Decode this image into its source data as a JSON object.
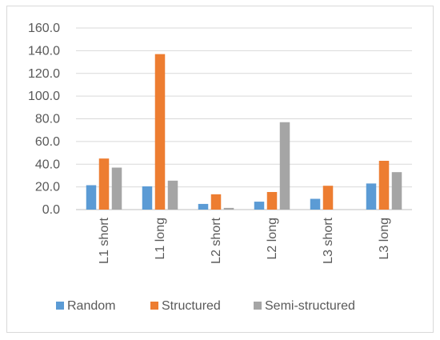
{
  "chart_data": {
    "type": "bar",
    "categories": [
      "L1 short",
      "L1 long",
      "L2 short",
      "L2 long",
      "L3 short",
      "L3 long"
    ],
    "series": [
      {
        "name": "Random",
        "color": "#5b9bd5",
        "values": [
          21.5,
          20.5,
          5.0,
          7.0,
          9.5,
          23.0
        ]
      },
      {
        "name": "Structured",
        "color": "#ed7d31",
        "values": [
          45.0,
          137.0,
          13.5,
          15.5,
          21.0,
          43.0
        ]
      },
      {
        "name": "Semi-structured",
        "color": "#a5a5a5",
        "values": [
          37.0,
          25.5,
          1.5,
          77.0,
          0,
          33.0
        ]
      }
    ],
    "ylim": [
      0,
      160
    ],
    "yticks": [
      "0.0",
      "20.0",
      "40.0",
      "60.0",
      "80.0",
      "100.0",
      "120.0",
      "140.0",
      "160.0"
    ],
    "grid": true,
    "legend_position": "bottom"
  }
}
